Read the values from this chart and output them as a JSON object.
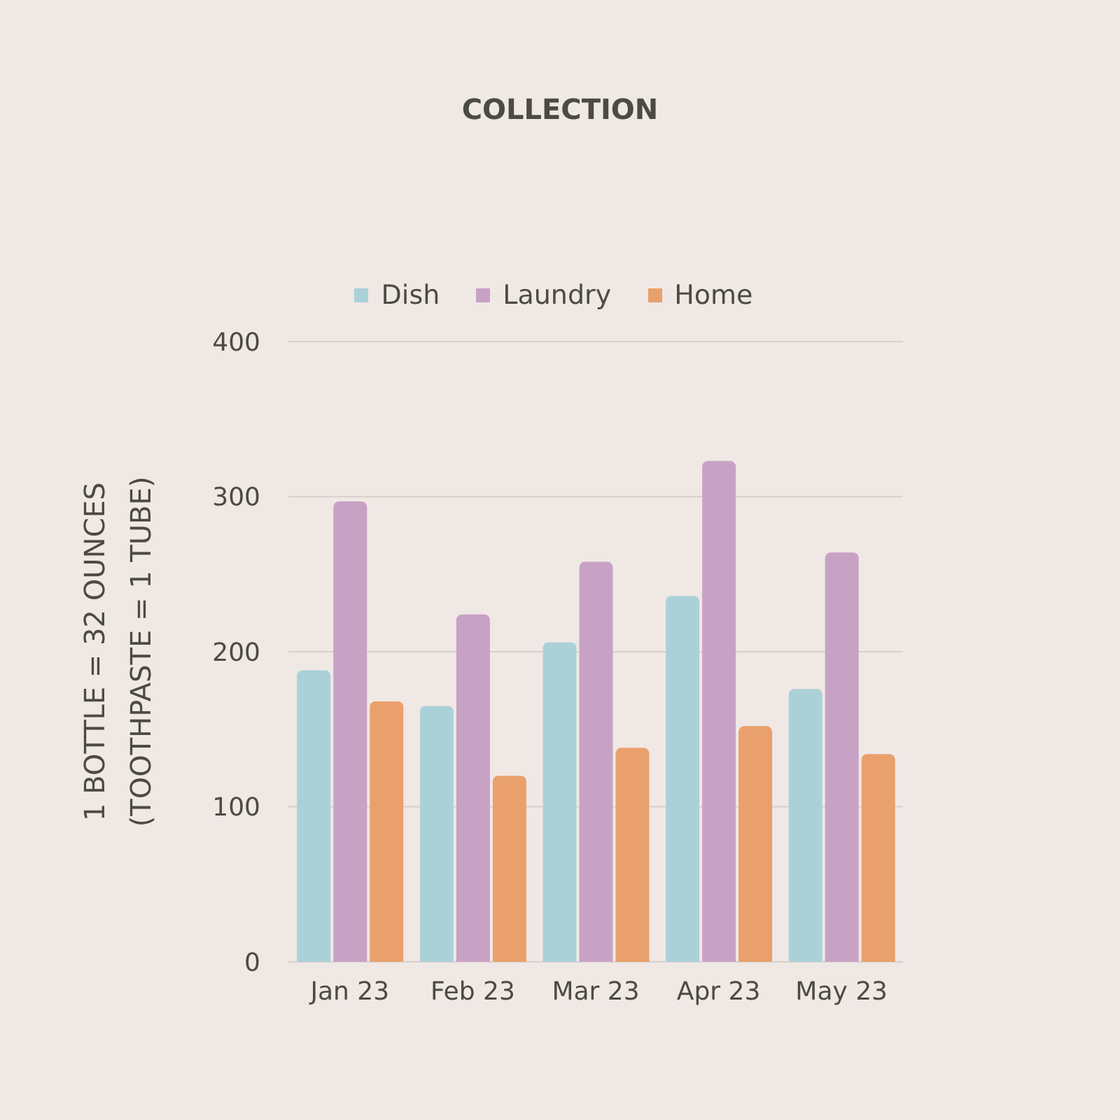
{
  "chart_data": {
    "type": "bar",
    "title": "COLLECTION",
    "ylabel": "1 BOTTLE = 32 OUNCES\n(TOOTHPASTE = 1 TUBE)",
    "categories": [
      "Jan 23",
      "Feb 23",
      "Mar 23",
      "Apr 23",
      "May 23"
    ],
    "series": [
      {
        "name": "Dish",
        "color": "#abd1d8",
        "values": [
          188,
          165,
          206,
          236,
          176
        ]
      },
      {
        "name": "Laundry",
        "color": "#c8a2c5",
        "values": [
          297,
          224,
          258,
          323,
          264
        ]
      },
      {
        "name": "Home",
        "color": "#e9a06c",
        "values": [
          168,
          120,
          138,
          152,
          134
        ]
      }
    ],
    "ylim": [
      0,
      400
    ],
    "yticks": [
      0,
      100,
      200,
      300,
      400
    ],
    "grid": "y",
    "legend": "top"
  }
}
